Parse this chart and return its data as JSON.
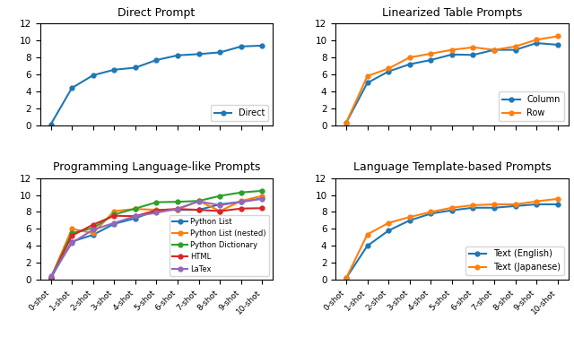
{
  "x_labels": [
    "0-shot",
    "1-shot",
    "2-shot",
    "3-shot",
    "4-shot",
    "5-shot",
    "6-shot",
    "7-shot",
    "8-shot",
    "9-shot",
    "10-shot"
  ],
  "direct": [
    0.1,
    4.4,
    5.9,
    6.55,
    6.8,
    7.7,
    8.25,
    8.4,
    8.6,
    9.3,
    9.4
  ],
  "column": [
    0.3,
    5.0,
    6.35,
    7.2,
    7.7,
    8.35,
    8.3,
    8.9,
    8.9,
    9.7,
    9.5
  ],
  "row": [
    0.3,
    5.8,
    6.7,
    8.0,
    8.45,
    8.9,
    9.2,
    8.9,
    9.3,
    10.1,
    10.5
  ],
  "python_list": [
    0.2,
    4.5,
    5.3,
    6.6,
    7.25,
    8.2,
    8.25,
    8.25,
    8.9,
    9.2,
    9.6
  ],
  "python_list_nested": [
    0.2,
    6.0,
    5.5,
    8.1,
    8.35,
    8.25,
    8.3,
    9.3,
    8.1,
    9.3,
    9.9
  ],
  "python_dict": [
    0.2,
    5.5,
    6.1,
    7.7,
    8.4,
    9.15,
    9.2,
    9.3,
    9.9,
    10.3,
    10.5
  ],
  "html": [
    0.2,
    5.2,
    6.5,
    7.55,
    7.5,
    8.2,
    8.35,
    8.25,
    8.1,
    8.4,
    8.45
  ],
  "latex": [
    0.4,
    4.35,
    5.9,
    6.7,
    7.5,
    7.9,
    8.4,
    9.25,
    8.8,
    9.2,
    9.55
  ],
  "text_english": [
    0.2,
    4.0,
    5.8,
    7.0,
    7.8,
    8.2,
    8.5,
    8.5,
    8.7,
    8.9,
    8.9
  ],
  "text_japanese": [
    0.2,
    5.35,
    6.7,
    7.4,
    8.0,
    8.5,
    8.8,
    8.9,
    8.9,
    9.25,
    9.55
  ],
  "ylim": [
    0,
    12
  ],
  "yticks": [
    0,
    2,
    4,
    6,
    8,
    10,
    12
  ],
  "color_blue": "#1f77b4",
  "color_orange": "#ff7f0e",
  "color_green": "#2ca02c",
  "color_red": "#d62728",
  "color_purple": "#9467bd",
  "titles": [
    "Direct Prompt",
    "Linearized Table Prompts",
    "Programming Language-like Prompts",
    "Language Template-based Prompts"
  ]
}
